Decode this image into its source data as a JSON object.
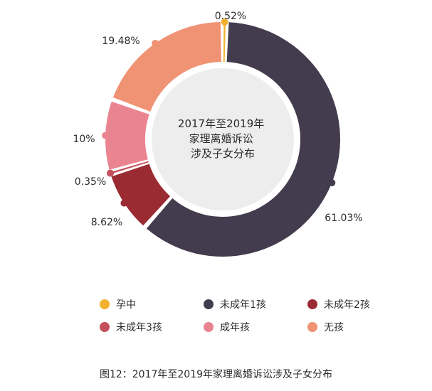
{
  "chart_data": {
    "type": "pie",
    "title": "2017年至2019年家理离婚诉讼涉及子女分布",
    "categories": [
      "孕中",
      "未成年1孩",
      "未成年2孩",
      "未成年3孩",
      "成年孩",
      "无孩"
    ],
    "values": [
      0.52,
      61.03,
      8.62,
      0.35,
      10,
      19.48
    ],
    "value_labels": [
      "0.52%",
      "61.03%",
      "8.62%",
      "0.35%",
      "10%",
      "19.48%"
    ],
    "colors": [
      "#f2b22d",
      "#433c4e",
      "#9a2b33",
      "#c4505c",
      "#ea8491",
      "#f09274"
    ],
    "center_lines": [
      "2017年至2019年",
      "家理离婚诉讼",
      "涉及子女分布"
    ],
    "legend_position": "bottom"
  },
  "caption": "图12：2017年至2019年家理离婚诉讼涉及子女分布"
}
